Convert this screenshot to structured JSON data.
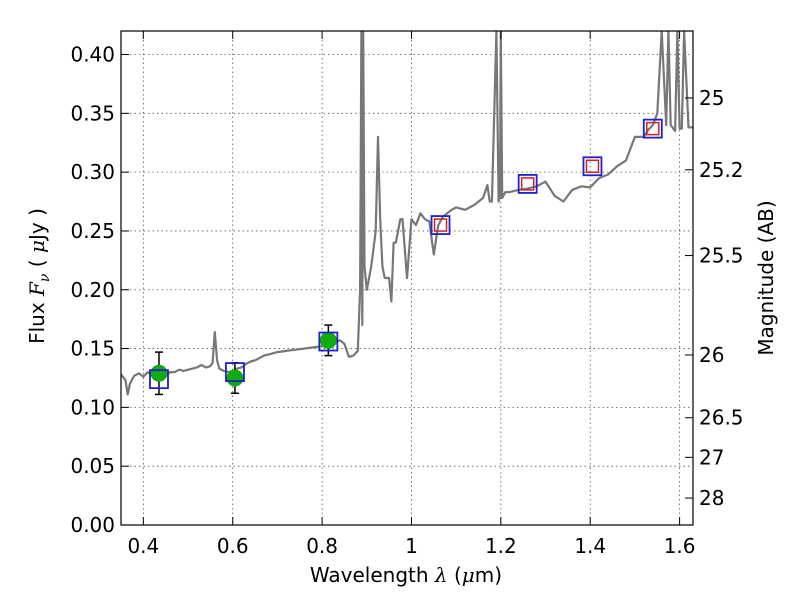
{
  "chart_data": {
    "type": "line",
    "xlabel": {
      "prefix": "Wavelength",
      "symbol": "λ",
      "unit_open": " (",
      "unit_mu": "μ",
      "unit_rest": "m)"
    },
    "ylabel": {
      "prefix": "Flux",
      "symbol_main": "F",
      "symbol_sub": "ν",
      "unit_open": "(",
      "unit_mu": "μ",
      "unit_rest": "Jy",
      "unit_close": ")"
    },
    "ylabel_right": "Magnitude (AB)",
    "xlim": [
      0.35,
      1.63
    ],
    "ylim": [
      0.0,
      0.42
    ],
    "grid": true,
    "x_ticks": [
      {
        "value": 0.4,
        "label": "0.4"
      },
      {
        "value": 0.6,
        "label": "0.6"
      },
      {
        "value": 0.8,
        "label": "0.8"
      },
      {
        "value": 1.0,
        "label": "1"
      },
      {
        "value": 1.2,
        "label": "1.2"
      },
      {
        "value": 1.4,
        "label": "1.4"
      },
      {
        "value": 1.6,
        "label": "1.6"
      }
    ],
    "y_ticks": [
      {
        "value": 0.0,
        "label": "0.00"
      },
      {
        "value": 0.05,
        "label": "0.05"
      },
      {
        "value": 0.1,
        "label": "0.10"
      },
      {
        "value": 0.15,
        "label": "0.15"
      },
      {
        "value": 0.2,
        "label": "0.20"
      },
      {
        "value": 0.25,
        "label": "0.25"
      },
      {
        "value": 0.3,
        "label": "0.30"
      },
      {
        "value": 0.35,
        "label": "0.35"
      },
      {
        "value": 0.4,
        "label": "0.40"
      }
    ],
    "right_ticks": [
      {
        "value": 25.0,
        "label": "25"
      },
      {
        "value": 25.2,
        "label": "25.2"
      },
      {
        "value": 25.5,
        "label": "25.5"
      },
      {
        "value": 26.0,
        "label": "26"
      },
      {
        "value": 26.5,
        "label": "26.5"
      },
      {
        "value": 27.0,
        "label": "27"
      },
      {
        "value": 28.0,
        "label": "28"
      }
    ],
    "spectrum": {
      "name": "model-spectrum",
      "color": "#777777",
      "x": [
        0.35,
        0.36,
        0.365,
        0.37,
        0.375,
        0.38,
        0.39,
        0.4,
        0.41,
        0.42,
        0.43,
        0.44,
        0.45,
        0.46,
        0.47,
        0.48,
        0.49,
        0.5,
        0.51,
        0.52,
        0.53,
        0.54,
        0.55,
        0.555,
        0.56,
        0.565,
        0.57,
        0.58,
        0.59,
        0.6,
        0.61,
        0.62,
        0.63,
        0.64,
        0.65,
        0.66,
        0.67,
        0.68,
        0.69,
        0.7,
        0.72,
        0.74,
        0.76,
        0.78,
        0.8,
        0.82,
        0.84,
        0.85,
        0.86,
        0.87,
        0.875,
        0.88,
        0.885,
        0.888,
        0.89,
        0.892,
        0.895,
        0.9,
        0.91,
        0.92,
        0.925,
        0.93,
        0.935,
        0.94,
        0.945,
        0.95,
        0.955,
        0.96,
        0.965,
        0.97,
        0.975,
        0.98,
        0.99,
        1.0,
        1.01,
        1.02,
        1.03,
        1.04,
        1.05,
        1.06,
        1.07,
        1.08,
        1.09,
        1.1,
        1.12,
        1.14,
        1.16,
        1.17,
        1.175,
        1.18,
        1.19,
        1.195,
        1.198,
        1.2,
        1.203,
        1.21,
        1.22,
        1.24,
        1.26,
        1.28,
        1.3,
        1.32,
        1.34,
        1.36,
        1.38,
        1.4,
        1.42,
        1.44,
        1.46,
        1.48,
        1.5,
        1.51,
        1.52,
        1.53,
        1.54,
        1.55,
        1.56,
        1.57,
        1.575,
        1.58,
        1.59,
        1.595,
        1.6,
        1.605,
        1.61,
        1.62,
        1.63
      ],
      "y": [
        0.128,
        0.123,
        0.111,
        0.12,
        0.124,
        0.127,
        0.129,
        0.126,
        0.13,
        0.127,
        0.128,
        0.129,
        0.127,
        0.13,
        0.13,
        0.132,
        0.131,
        0.132,
        0.133,
        0.134,
        0.136,
        0.134,
        0.135,
        0.138,
        0.164,
        0.14,
        0.133,
        0.131,
        0.13,
        0.131,
        0.133,
        0.134,
        0.137,
        0.139,
        0.14,
        0.142,
        0.144,
        0.145,
        0.146,
        0.147,
        0.148,
        0.149,
        0.15,
        0.151,
        0.152,
        0.155,
        0.157,
        0.154,
        0.143,
        0.144,
        0.146,
        0.148,
        0.2,
        0.42,
        0.17,
        0.42,
        0.22,
        0.2,
        0.22,
        0.25,
        0.33,
        0.26,
        0.22,
        0.21,
        0.21,
        0.21,
        0.19,
        0.24,
        0.24,
        0.25,
        0.26,
        0.26,
        0.21,
        0.26,
        0.255,
        0.265,
        0.26,
        0.258,
        0.23,
        0.255,
        0.262,
        0.265,
        0.268,
        0.27,
        0.268,
        0.272,
        0.278,
        0.289,
        0.275,
        0.275,
        0.42,
        0.275,
        0.28,
        0.42,
        0.278,
        0.283,
        0.283,
        0.285,
        0.286,
        0.288,
        0.292,
        0.28,
        0.275,
        0.285,
        0.288,
        0.287,
        0.295,
        0.298,
        0.305,
        0.31,
        0.33,
        0.33,
        0.33,
        0.336,
        0.34,
        0.35,
        0.42,
        0.34,
        0.42,
        0.34,
        0.335,
        0.42,
        0.337,
        0.337,
        0.42,
        0.338,
        0.338
      ]
    },
    "model_points": {
      "name": "model-photometry",
      "marker": "open-square",
      "color": "#cc2222",
      "x": [
        1.065,
        1.26,
        1.405,
        1.54
      ],
      "y": [
        0.255,
        0.29,
        0.305,
        0.337
      ]
    },
    "observed_boxes": {
      "name": "filter-boxes",
      "marker": "open-square",
      "color": "#2020cc",
      "x": [
        0.435,
        0.605,
        0.814,
        1.065,
        1.26,
        1.405,
        1.54
      ],
      "y": [
        0.124,
        0.13,
        0.156,
        0.255,
        0.29,
        0.305,
        0.337
      ]
    },
    "observed_points": {
      "name": "observed-photometry",
      "marker": "filled-circle",
      "color": "#11aa11",
      "x": [
        0.435,
        0.605,
        0.814
      ],
      "y": [
        0.129,
        0.125,
        0.157
      ],
      "yerr_low": [
        0.018,
        0.013,
        0.013
      ],
      "yerr_high": [
        0.018,
        0.013,
        0.013
      ]
    }
  }
}
